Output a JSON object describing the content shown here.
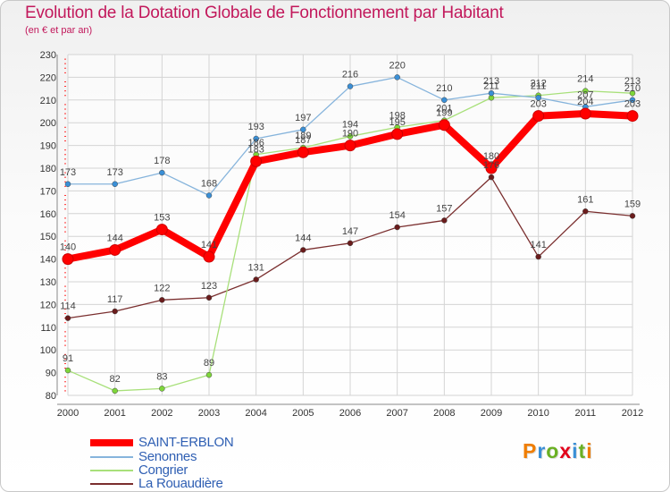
{
  "title": "Evolution de la Dotation Globale de Fonctionnement par Habitant",
  "subtitle": "(en € et par an)",
  "logo": {
    "letters": [
      "P",
      "r",
      "o",
      "x",
      "i",
      "t",
      "i"
    ],
    "colors": [
      "#ef7d00",
      "#3a8fd6",
      "#6ab023",
      "#e2001a",
      "#3a8fd6",
      "#6ab023",
      "#ef7d00"
    ]
  },
  "chart_data": {
    "type": "line",
    "title": "Evolution de la Dotation Globale de Fonctionnement par Habitant",
    "subtitle": "(en € et par an)",
    "x": [
      "2000",
      "2001",
      "2002",
      "2003",
      "2004",
      "2005",
      "2006",
      "2007",
      "2008",
      "2009",
      "2010",
      "2011",
      "2012"
    ],
    "ylim": [
      80,
      230
    ],
    "yticks": [
      80,
      90,
      100,
      110,
      120,
      130,
      140,
      150,
      160,
      170,
      180,
      190,
      200,
      210,
      220,
      230
    ],
    "grid": true,
    "legend_position": "bottom-left",
    "series": [
      {
        "name": "SAINT-ERBLON",
        "color": "#ff0000",
        "marker": "#ff0000",
        "emphasis": true,
        "values": [
          140,
          144,
          153,
          141,
          183,
          187,
          190,
          195,
          199,
          180,
          203,
          204,
          203
        ],
        "labels": [
          "140",
          "144",
          "153",
          "141",
          "183",
          "187",
          "190",
          "195",
          "199",
          "180",
          "203",
          "204",
          "203"
        ]
      },
      {
        "name": "Senonnes",
        "color": "#86b4dc",
        "marker": "#3a8fd6",
        "values": [
          173,
          173,
          178,
          168,
          193,
          197,
          216,
          220,
          210,
          213,
          211,
          207,
          210
        ],
        "labels": [
          "173",
          "173",
          "178",
          "168",
          "193",
          "197",
          "216",
          "220",
          "210",
          "213",
          "211",
          "207",
          "210"
        ]
      },
      {
        "name": "Congrier",
        "color": "#a8e07a",
        "marker": "#7ed63a",
        "values": [
          91,
          82,
          83,
          89,
          186,
          189,
          194,
          198,
          201,
          211,
          212,
          214,
          213
        ],
        "labels": [
          "91",
          "82",
          "83",
          "89",
          "186",
          "189",
          "194",
          "198",
          "201",
          "211",
          "212",
          "214",
          "213"
        ]
      },
      {
        "name": "La Rouaudière",
        "color": "#7a2e2e",
        "marker": "#6a1c1c",
        "values": [
          114,
          117,
          122,
          123,
          131,
          144,
          147,
          154,
          157,
          176,
          141,
          161,
          159
        ],
        "labels": [
          "114",
          "117",
          "122",
          "123",
          "131",
          "144",
          "147",
          "154",
          "157",
          "176",
          "141",
          "161",
          "159"
        ]
      }
    ]
  }
}
